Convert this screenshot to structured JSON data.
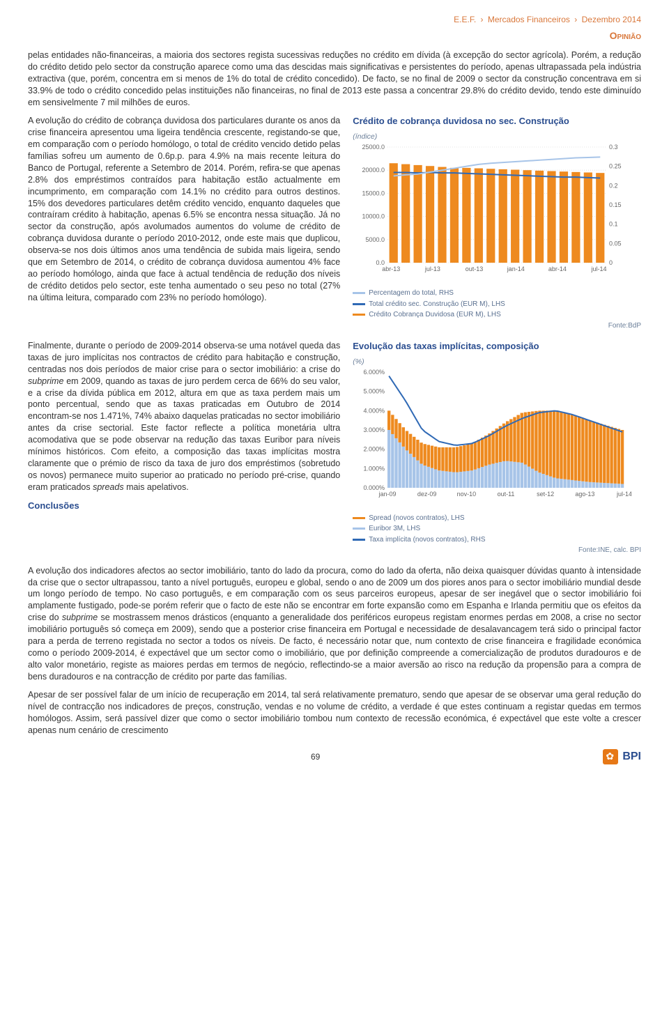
{
  "header": {
    "brand": "E.E.F.",
    "section": "Mercados Financeiros",
    "issue": "Dezembro 2014",
    "opiniao": "Opinião"
  },
  "paragraphs": {
    "p1": "pelas entidades não-financeiras, a maioria dos sectores regista sucessivas reduções no crédito em dívida (à excepção do sector agrícola). Porém, a redução do crédito detido pelo sector da construção aparece como uma das descidas mais significativas e persistentes do período, apenas ultrapassada pela indústria extractiva (que, porém, concentra em si menos de 1% do total de crédito concedido). De facto, se no final de 2009 o sector da construção concentrava em si 33.9% de todo o crédito concedido pelas instituições não financeiras, no final de 2013 este passa a concentrar 29.8% do crédito devido, tendo este diminuído em sensivelmente 7 mil milhões de euros.",
    "p2": "A evolução do crédito de cobrança duvidosa dos particulares durante os anos da crise financeira apresentou uma ligeira tendência crescente, registando-se que, em comparação com o período homólogo, o total de crédito vencido detido pelas famílias sofreu um aumento de 0.6p.p. para 4.9% na mais recente leitura do Banco de Portugal, referente a Setembro de 2014. Porém, refira-se que apenas 2.8% dos empréstimos contraídos para habitação estão actualmente em incumprimento, em comparação com 14.1% no crédito para outros destinos. 15% dos devedores particulares detêm crédito vencido, enquanto daqueles que contraíram crédito à habitação, apenas 6.5% se encontra nessa situação. Já no sector da construção, após avolumados aumentos do volume de crédito de cobrança duvidosa durante o período 2010-2012, onde este mais que duplicou, observa-se nos dois últimos anos uma tendência de subida mais ligeira, sendo que em Setembro de 2014, o crédito de cobrança duvidosa aumentou 4% face ao período homólogo, ainda que face à actual tendência de redução dos níveis de crédito detidos pelo sector, este tenha aumentado o seu peso no total (27% na última leitura, comparado com 23% no período homólogo).",
    "p3_prefix": "Finalmente, durante o período de 2009-2014 observa-se uma notável queda das taxas de juro implícitas nos contractos de crédito para habitação e construção, centradas nos dois períodos de maior crise para o sector imobiliário: a crise do ",
    "p3_italic1": "subprime",
    "p3_mid": " em 2009, quando as taxas de juro perdem cerca de 66% do seu valor, e a crise da dívida pública em 2012, altura em que as taxa perdem mais um ponto percentual, sendo que as taxas praticadas em Outubro de 2014 encontram-se nos 1.471%, 74% abaixo daquelas praticadas no sector imobiliário antes da crise sectorial. Este factor reflecte a política monetária ultra acomodativa que se pode observar na redução das taxas Euribor para níveis mínimos históricos. Com efeito, a composição das taxas implícitas mostra claramente que o prémio de risco da taxa de juro dos empréstimos (sobretudo os novos) permanece muito superior ao praticado no período pré-crise, quando eram praticados ",
    "p3_italic2": "spreads",
    "p3_suffix": " mais apelativos.",
    "p4_prefix": "A evolução dos indicadores afectos ao sector imobiliário, tanto do lado da procura, como do lado da oferta, não deixa quaisquer dúvidas quanto à intensidade da crise que o sector ultrapassou, tanto a nível português, europeu e global, sendo o ano de 2009 um dos piores anos para o sector imobiliário mundial desde um longo período de tempo. No caso português, e em comparação com os seus parceiros europeus, apesar de ser inegável que o sector imobiliário foi amplamente fustigado, pode-se porém referir que o facto de este não se encontrar em forte expansão como em Espanha e Irlanda permitiu que os efeitos da crise do ",
    "p4_italic": "subprime",
    "p4_suffix": " se mostrassem menos drásticos (enquanto a generalidade dos periféricos europeus registam enormes perdas em 2008, a crise no sector imobiliário português só começa em 2009), sendo que a posterior crise financeira em Portugal e necessidade de desalavancagem terá sido o principal factor para a perda de terreno registada no sector a todos os níveis. De facto, é necessário notar que, num contexto de crise financeira e fragilidade económica como o período 2009-2014, é expectável que um sector como o imobiliário, que por definição compreende a comercialização de produtos duradouros e de alto valor monetário, registe as maiores perdas em termos de negócio, reflectindo-se a maior aversão ao risco na redução da propensão para a compra de bens duradouros e na contracção de crédito por parte das famílias.",
    "p5": "Apesar de ser possível falar de um início de recuperação em 2014, tal será relativamente prematuro, sendo que apesar de se observar uma geral redução do nível de contracção nos indicadores de preços, construção, vendas e no volume de crédito, a verdade é que estes continuam a registar quedas em termos homólogos. Assim, será passível dizer que como o sector imobiliário tombou num contexto de recessão económica, é expectável que este volte a crescer apenas num cenário de crescimento"
  },
  "conclusoes_label": "Conclusões",
  "chart1": {
    "title": "Crédito de cobrança duvidosa no sec. Construção",
    "sub": "(índice)",
    "y_left_ticks": [
      "25000.0",
      "20000.0",
      "15000.0",
      "10000.0",
      "5000.0",
      "0.0"
    ],
    "y_right_ticks": [
      "0.3",
      "0.25",
      "0.2",
      "0.15",
      "0.1",
      "0.05",
      "0"
    ],
    "x_ticks": [
      "abr-13",
      "jul-13",
      "out-13",
      "jan-14",
      "abr-14",
      "jul-14"
    ],
    "bars": [
      21500,
      21300,
      21100,
      20900,
      20700,
      20500,
      20500,
      20400,
      20300,
      20200,
      20100,
      20000,
      19900,
      19800,
      19700,
      19600,
      19500,
      19400
    ],
    "line_total": [
      19500,
      19500,
      19400,
      19500,
      19400,
      19400,
      19300,
      19200,
      19100,
      19000,
      18900,
      18800,
      18700,
      18600,
      18500,
      18500,
      18400,
      18300
    ],
    "line_pct": [
      0.225,
      0.228,
      0.23,
      0.235,
      0.24,
      0.245,
      0.25,
      0.255,
      0.258,
      0.26,
      0.262,
      0.264,
      0.266,
      0.268,
      0.27,
      0.272,
      0.273,
      0.274
    ],
    "colors": {
      "bar": "#ee8a1f",
      "line_total": "#2f69b5",
      "line_pct": "#a7c4e8",
      "grid": "#dcdcdc",
      "axis_text": "#808080"
    },
    "legend": [
      {
        "swatch": "#a7c4e8",
        "label": "Percentagem do total, RHS"
      },
      {
        "swatch": "#2f69b5",
        "label": "Total crédito sec. Construção (EUR M), LHS"
      },
      {
        "swatch": "#ee8a1f",
        "label": "Crédito Cobrança Duvidosa (EUR M), LHS"
      }
    ],
    "source": "Fonte:BdP"
  },
  "chart2": {
    "title": "Evolução das taxas implícitas, composição",
    "sub": "(%)",
    "y_ticks": [
      "6.000%",
      "5.000%",
      "4.000%",
      "3.000%",
      "2.000%",
      "1.000%",
      "0.000%"
    ],
    "x_ticks": [
      "jan-09",
      "dez-09",
      "nov-10",
      "out-11",
      "set-12",
      "ago-13",
      "jul-14"
    ],
    "euribor": [
      3.0,
      2.0,
      1.2,
      0.9,
      0.8,
      0.9,
      1.2,
      1.4,
      1.3,
      0.8,
      0.5,
      0.4,
      0.3,
      0.25,
      0.2
    ],
    "spread": [
      1.0,
      1.0,
      1.1,
      1.2,
      1.3,
      1.4,
      1.6,
      2.0,
      2.6,
      3.2,
      3.5,
      3.4,
      3.2,
      3.0,
      2.8
    ],
    "taxa_line": [
      5.8,
      4.5,
      3.0,
      2.4,
      2.2,
      2.3,
      2.7,
      3.2,
      3.6,
      3.9,
      4.0,
      3.8,
      3.5,
      3.2,
      2.9
    ],
    "colors": {
      "euribor": "#a7c4e8",
      "spread": "#ee8a1f",
      "line": "#2f69b5",
      "grid": "#dcdcdc",
      "axis_text": "#808080"
    },
    "legend": [
      {
        "swatch": "#ee8a1f",
        "label": "Spread (novos contratos), LHS"
      },
      {
        "swatch": "#a7c4e8",
        "label": "Euribor 3M, LHS"
      },
      {
        "swatch": "#2f69b5",
        "label": "Taxa implícita (novos contratos), RHS"
      }
    ],
    "source": "Fonte:INE, calc. BPI"
  },
  "footer": {
    "page": "69",
    "logo_text": "BPI"
  }
}
